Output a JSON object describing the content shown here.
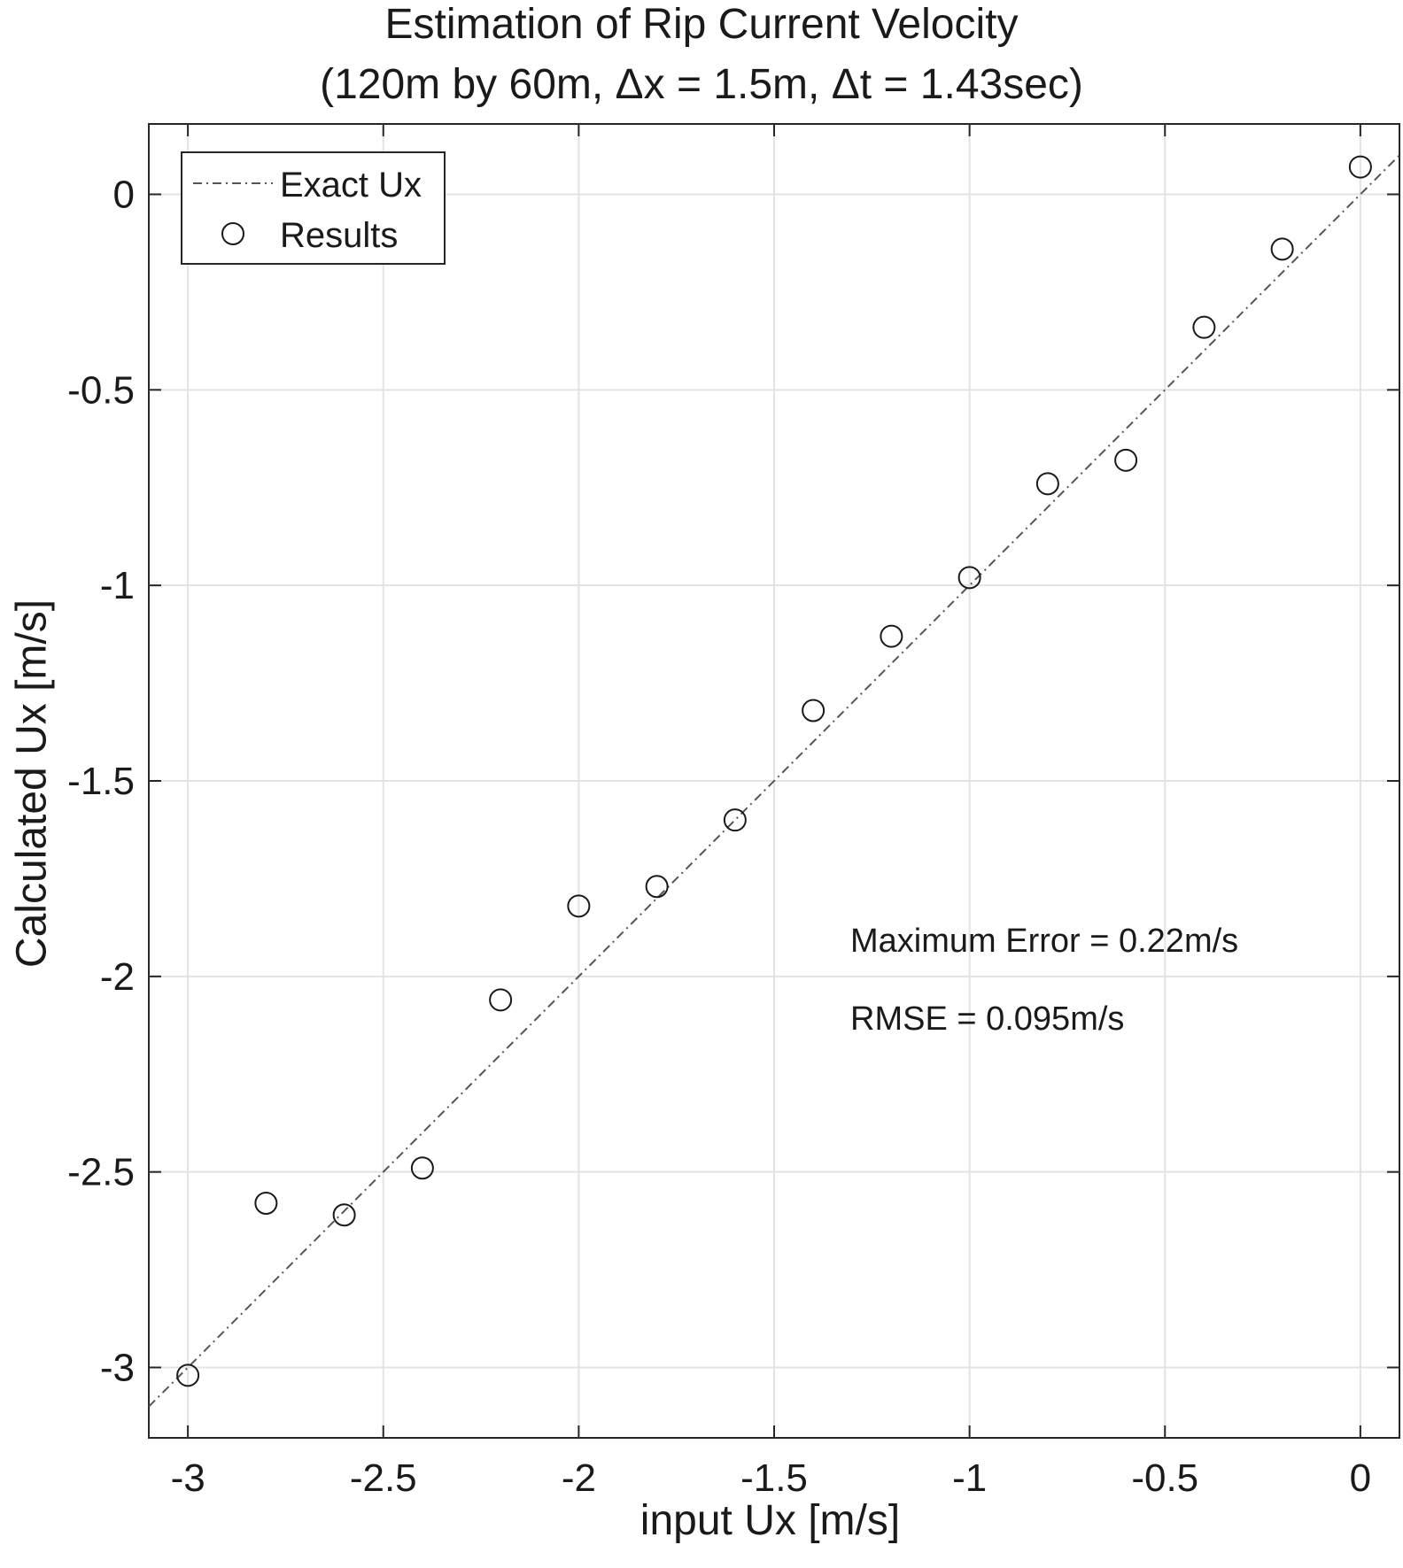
{
  "chart_data": {
    "type": "scatter",
    "title": [
      "Estimation of Rip Current Velocity",
      "(120m by 60m, Δx = 1.5m, Δt = 1.43sec)"
    ],
    "xlabel": "input Ux [m/s]",
    "ylabel": "Calculated Ux [m/s]",
    "xlim": [
      -3.1,
      0.1
    ],
    "ylim": [
      -3.18,
      0.18
    ],
    "x_ticks": [
      -3,
      -2.5,
      -2,
      -1.5,
      -1,
      -0.5,
      0
    ],
    "x_tick_labels": [
      "-3",
      "-2.5",
      "-2",
      "-1.5",
      "-1",
      "-0.5",
      "0"
    ],
    "y_ticks": [
      0,
      -0.5,
      -1,
      -1.5,
      -2,
      -2.5,
      -3
    ],
    "y_tick_labels": [
      "0",
      "-0.5",
      "-1",
      "-1.5",
      "-2",
      "-2.5",
      "-3"
    ],
    "grid": true,
    "legend_position": "top-left",
    "series": [
      {
        "name": "Exact Ux",
        "kind": "line",
        "style": "dash-dot",
        "color": "#555555",
        "x": [
          -3.1,
          0.1
        ],
        "y": [
          -3.1,
          0.1
        ]
      },
      {
        "name": "Results",
        "kind": "scatter",
        "marker": "open-circle",
        "color": "#1a1a1a",
        "x": [
          -3.0,
          -2.8,
          -2.6,
          -2.4,
          -2.2,
          -2.0,
          -1.8,
          -1.6,
          -1.4,
          -1.2,
          -1.0,
          -0.8,
          -0.6,
          -0.4,
          -0.2,
          0.0
        ],
        "y": [
          -3.02,
          -2.58,
          -2.61,
          -2.49,
          -2.06,
          -1.82,
          -1.77,
          -1.6,
          -1.32,
          -1.13,
          -0.98,
          -0.74,
          -0.68,
          -0.34,
          -0.14,
          0.07
        ]
      }
    ],
    "annotations": [
      "Maximum Error = 0.22m/s",
      "RMSE = 0.095m/s"
    ]
  }
}
